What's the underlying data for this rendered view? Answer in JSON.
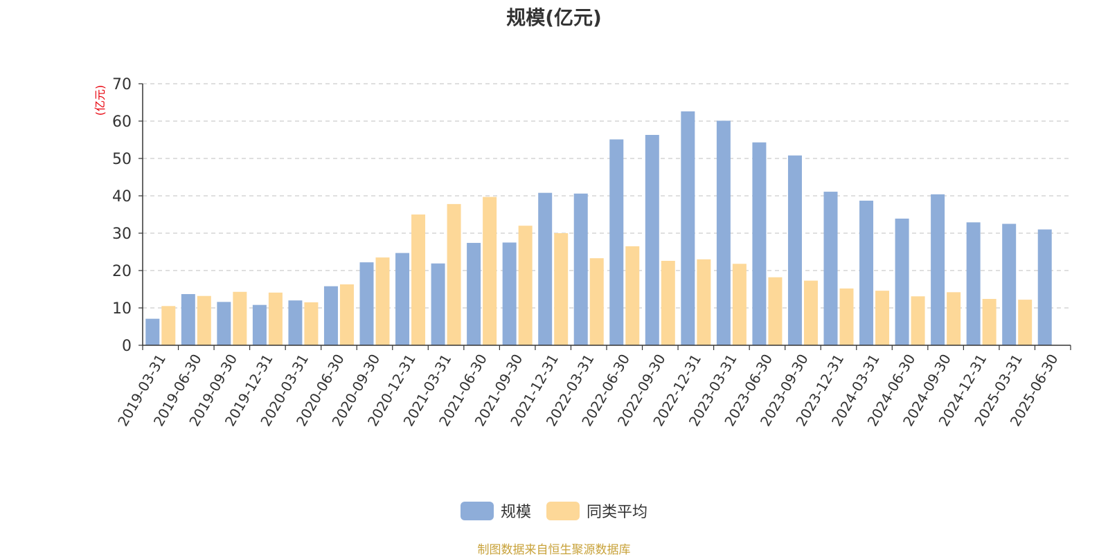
{
  "title": "规模(亿元)",
  "source_note": "制图数据来自恒生聚源数据库",
  "chart_data": {
    "type": "bar",
    "title": "规模(亿元)",
    "ylabel": "(亿元)",
    "ylim": [
      0,
      70
    ],
    "yticks": [
      0,
      10,
      20,
      30,
      40,
      50,
      60,
      70
    ],
    "grid": true,
    "legend_position": "bottom-center",
    "categories": [
      "2019-03-31",
      "2019-06-30",
      "2019-09-30",
      "2019-12-31",
      "2020-03-31",
      "2020-06-30",
      "2020-09-30",
      "2020-12-31",
      "2021-03-31",
      "2021-06-30",
      "2021-09-30",
      "2021-12-31",
      "2022-03-31",
      "2022-06-30",
      "2022-09-30",
      "2022-12-31",
      "2023-03-31",
      "2023-06-30",
      "2023-09-30",
      "2023-12-31",
      "2024-03-31",
      "2024-06-30",
      "2024-09-30",
      "2024-12-31",
      "2025-03-31",
      "2025-06-30"
    ],
    "series": [
      {
        "name": "规模",
        "color": "#8eadd9",
        "values": [
          7.1,
          13.7,
          11.6,
          10.8,
          12.0,
          15.8,
          22.2,
          24.7,
          21.9,
          27.4,
          27.5,
          40.8,
          40.6,
          55.1,
          56.3,
          62.6,
          60.1,
          54.3,
          50.8,
          41.1,
          38.7,
          33.9,
          40.4,
          32.9,
          32.5,
          31.0
        ]
      },
      {
        "name": "同类平均",
        "color": "#fdd898",
        "values": [
          10.5,
          13.2,
          14.3,
          14.1,
          11.5,
          16.3,
          23.5,
          35.0,
          37.8,
          39.7,
          32.0,
          30.0,
          23.3,
          26.5,
          22.6,
          23.0,
          21.8,
          18.2,
          17.3,
          15.2,
          14.6,
          13.1,
          14.2,
          12.4,
          12.2,
          null
        ]
      }
    ]
  },
  "legend": [
    {
      "label": "规模",
      "color": "#8eadd9"
    },
    {
      "label": "同类平均",
      "color": "#fdd898"
    }
  ]
}
